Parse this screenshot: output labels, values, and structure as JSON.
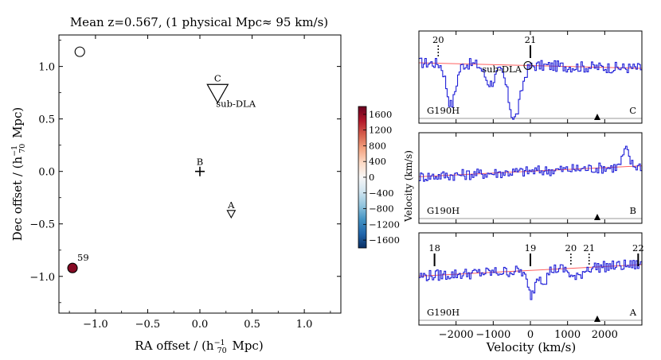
{
  "chart_data": [
    {
      "type": "scatter",
      "title": "Mean z=0.567, (1 physical Mpc≈ 95 km/s)",
      "xlabel": "RA offset / (h",
      "ylabel": "Dec offset  / (h",
      "xlim": [
        -1.35,
        1.35
      ],
      "ylim": [
        -1.35,
        1.3
      ],
      "xticks": [
        -1.0,
        -0.5,
        0.0,
        0.5,
        1.0
      ],
      "xtick_labels": [
        "−1.0",
        "−0.5",
        "0.0",
        "0.5",
        "1.0"
      ],
      "yticks": [
        -1.0,
        -0.5,
        0.0,
        0.5,
        1.0
      ],
      "ytick_labels": [
        "−1.0",
        "−0.5",
        "0.0",
        "0.5",
        "1.0"
      ],
      "sightlines": [
        {
          "label": "C",
          "x": 0.17,
          "y": 0.73,
          "marker": "triangle-down-large",
          "note": "sub-DLA"
        },
        {
          "label": "B",
          "x": 0.0,
          "y": 0.0,
          "marker": "plus"
        },
        {
          "label": "A",
          "x": 0.3,
          "y": -0.41,
          "marker": "triangle-down-small"
        }
      ],
      "galaxies": [
        {
          "x": -1.15,
          "y": 1.14,
          "velocity": null,
          "filled": false
        },
        {
          "x": -1.22,
          "y": -0.92,
          "velocity": 1650,
          "filled": true,
          "label": "59"
        }
      ]
    },
    {
      "type": "colorbar",
      "label": "Velocity (km/s)",
      "range": [
        -1800,
        1800
      ],
      "ticks": [
        1600,
        1200,
        800,
        400,
        0,
        -400,
        -800,
        -1200,
        -1600
      ],
      "tick_labels": [
        "1600",
        "1200",
        "800",
        "400",
        "0",
        "−400",
        "−800",
        "−1200",
        "−1600"
      ],
      "colormap": [
        "#0b2f64",
        "#2166ac",
        "#4393c3",
        "#92c5de",
        "#d1e5f0",
        "#f7f7f7",
        "#fddbc7",
        "#f4a582",
        "#d6604d",
        "#b2182b",
        "#67001f"
      ]
    },
    {
      "type": "line",
      "panels": [
        {
          "sightline": "C",
          "instrument": "G190H",
          "continuum": [
            1.0,
            0.88
          ],
          "markers": [
            {
              "v": -2480,
              "label": "20",
              "dotted": true
            },
            {
              "v": 0,
              "label": "21",
              "dotted": false,
              "circle": true,
              "circle_label": "sub-DLA"
            }
          ],
          "absorption": [
            {
              "center": -2150,
              "depth": 0.75,
              "width": 170
            },
            {
              "center": -1100,
              "depth": 0.35,
              "width": 200
            },
            {
              "center": -450,
              "depth": 1.0,
              "width": 230
            }
          ]
        },
        {
          "sightline": "B",
          "instrument": "G190H",
          "continuum": [
            0.72,
            0.96
          ],
          "markers": [],
          "absorption": [],
          "emission": [
            {
              "center": 2550,
              "height": 0.35,
              "width": 120
            }
          ]
        },
        {
          "sightline": "A",
          "instrument": "G190H",
          "continuum": [
            0.75,
            1.0
          ],
          "markers": [
            {
              "v": -2580,
              "label": "18",
              "dotted": false
            },
            {
              "v": 0,
              "label": "19",
              "dotted": false
            },
            {
              "v": 1090,
              "label": "20",
              "dotted": true
            },
            {
              "v": 1580,
              "label": "21",
              "dotted": true
            },
            {
              "v": 2900,
              "label": "22",
              "dotted": false
            }
          ],
          "absorption": [
            {
              "center": 0,
              "depth": 0.5,
              "width": 140
            },
            {
              "center": 350,
              "depth": 0.22,
              "width": 120
            },
            {
              "center": 1200,
              "depth": 0.2,
              "width": 200
            }
          ]
        }
      ],
      "xlabel": "Velocity (km/s)",
      "ylabel": "Velocity (km/s)",
      "xlim": [
        -3000,
        3000
      ],
      "xticks": [
        -2000,
        -1000,
        0,
        1000,
        2000
      ],
      "xtick_labels": [
        "−2000",
        "−1000",
        "0",
        "1000",
        "2000"
      ],
      "triangle_v": 1800
    }
  ]
}
